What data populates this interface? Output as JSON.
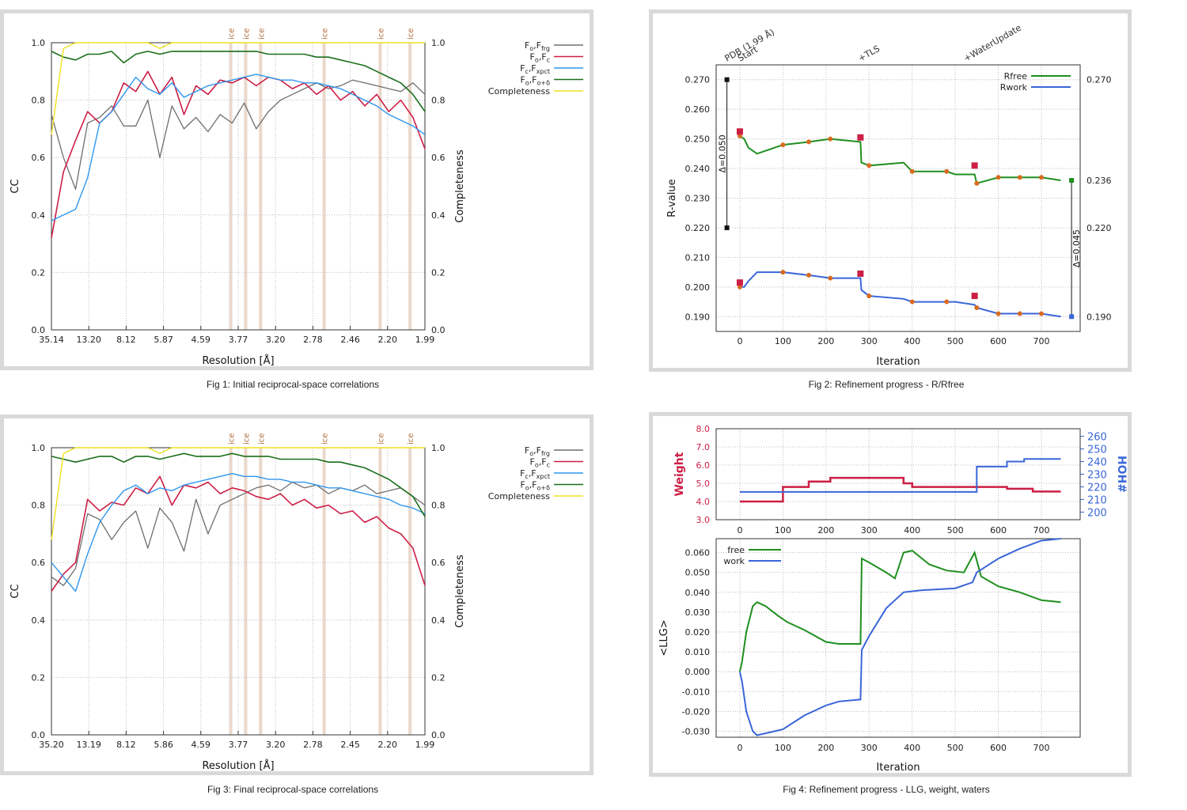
{
  "figures": [
    {
      "id": "fig1",
      "caption": "Fig 1:  Initial reciprocal-space correlations"
    },
    {
      "id": "fig2",
      "caption": "Fig 2:  Refinement progress - R/Rfree"
    },
    {
      "id": "fig3",
      "caption": "Fig 3:  Final reciprocal-space correlations"
    },
    {
      "id": "fig4",
      "caption": "Fig 4:  Refinement progress - LLG, weight, waters"
    }
  ],
  "colors": {
    "grey": "#6e6e6e",
    "red": "#cc1f45",
    "blue": "#2e96ee",
    "green": "#1a6e1a",
    "yellow": "#f0e020",
    "ice": "#d9b8a0",
    "rblue": "#3a66d9",
    "rgreen": "#1f8f1f",
    "orange": "#d86a20"
  },
  "chart_data": [
    {
      "type": "line",
      "title": "",
      "xlabel": "Resolution [Å]",
      "ylabel": "CC",
      "y2label": "Completeness",
      "x_tick_labels": [
        "35.14",
        "13.20",
        "8.12",
        "5.87",
        "4.59",
        "3.77",
        "3.20",
        "2.78",
        "2.46",
        "2.20",
        "1.99"
      ],
      "y_ticks": [
        "0.0",
        "0.2",
        "0.4",
        "0.6",
        "0.8",
        "1.0"
      ],
      "ylim": [
        0,
        1
      ],
      "ice_labels": [
        "ice",
        "ice",
        "ice",
        "ice",
        "ice",
        "ice"
      ],
      "ice_positions": [
        0.48,
        0.52,
        0.56,
        0.73,
        0.88,
        0.96
      ],
      "legend": [
        "Fo,Ffrg",
        "Fo,Fc",
        "Fc,Fxpct",
        "Fo,Fo+δ",
        "Completeness"
      ],
      "series": [
        {
          "name": "Fo,Ffrg",
          "values": [
            0.75,
            0.6,
            0.49,
            0.72,
            0.74,
            0.78,
            0.71,
            0.71,
            0.8,
            0.6,
            0.78,
            0.7,
            0.74,
            0.69,
            0.75,
            0.72,
            0.79,
            0.7,
            0.76,
            0.8,
            0.82,
            0.84,
            0.86,
            0.84,
            0.85,
            0.87,
            0.86,
            0.85,
            0.84,
            0.83,
            0.86,
            0.82
          ]
        },
        {
          "name": "Fo,Fc",
          "values": [
            0.32,
            0.55,
            0.66,
            0.76,
            0.72,
            0.76,
            0.86,
            0.83,
            0.9,
            0.82,
            0.88,
            0.75,
            0.85,
            0.82,
            0.87,
            0.86,
            0.88,
            0.85,
            0.88,
            0.87,
            0.84,
            0.86,
            0.82,
            0.85,
            0.8,
            0.83,
            0.78,
            0.82,
            0.76,
            0.8,
            0.74,
            0.63
          ]
        },
        {
          "name": "Fc,Fxpct",
          "values": [
            0.38,
            0.4,
            0.42,
            0.53,
            0.72,
            0.76,
            0.82,
            0.88,
            0.84,
            0.82,
            0.86,
            0.81,
            0.83,
            0.85,
            0.86,
            0.87,
            0.88,
            0.89,
            0.88,
            0.87,
            0.87,
            0.86,
            0.86,
            0.85,
            0.84,
            0.82,
            0.8,
            0.78,
            0.75,
            0.73,
            0.71,
            0.68
          ]
        },
        {
          "name": "Fo,Fo+δ",
          "values": [
            0.97,
            0.95,
            0.94,
            0.96,
            0.96,
            0.97,
            0.93,
            0.96,
            0.97,
            0.96,
            0.97,
            0.97,
            0.97,
            0.97,
            0.97,
            0.97,
            0.97,
            0.97,
            0.96,
            0.96,
            0.96,
            0.96,
            0.95,
            0.95,
            0.94,
            0.93,
            0.92,
            0.9,
            0.88,
            0.86,
            0.82,
            0.76
          ]
        },
        {
          "name": "Completeness",
          "values": [
            0.68,
            0.98,
            1.0,
            1.0,
            1.0,
            1.0,
            1.0,
            1.0,
            1.0,
            0.98,
            1.0,
            1.0,
            1.0,
            1.0,
            1.0,
            1.0,
            1.0,
            1.0,
            1.0,
            1.0,
            1.0,
            1.0,
            1.0,
            1.0,
            1.0,
            1.0,
            1.0,
            1.0,
            1.0,
            1.0,
            1.0,
            1.0
          ]
        }
      ]
    },
    {
      "type": "line",
      "title": "",
      "xlabel": "Iteration",
      "ylabel": "R-value",
      "x_ticks": [
        0,
        100,
        200,
        300,
        400,
        500,
        600,
        700
      ],
      "xlim": [
        -55,
        790
      ],
      "ylim": [
        0.185,
        0.275
      ],
      "y_ticks": [
        "0.270",
        "0.260",
        "0.250",
        "0.240",
        "0.230",
        "0.220",
        "0.210",
        "0.200",
        "0.190"
      ],
      "right_labels": [
        "0.270",
        "0.236",
        "0.220",
        "0.190"
      ],
      "right_label_values": [
        0.27,
        0.236,
        0.22,
        0.19
      ],
      "top_annotations": [
        {
          "label": "PDB (1.99 Å)",
          "x": -30
        },
        {
          "label": "Start",
          "x": 0
        },
        {
          "label": "+TLS",
          "x": 280
        },
        {
          "label": "+WaterUpdate",
          "x": 525
        }
      ],
      "delta_left": "Δ=0.050",
      "delta_right": "Δ=0.045",
      "pdb_rfree": 0.27,
      "pdb_rwork": 0.22,
      "final_rfree": 0.236,
      "final_rwork": 0.19,
      "legend": [
        "Rfree",
        "Rwork"
      ],
      "series": [
        {
          "name": "Rfree",
          "x": [
            0,
            10,
            20,
            40,
            60,
            80,
            100,
            160,
            210,
            280,
            282,
            300,
            380,
            400,
            480,
            500,
            545,
            550,
            600,
            650,
            700,
            745
          ],
          "values": [
            0.251,
            0.25,
            0.247,
            0.245,
            0.246,
            0.247,
            0.248,
            0.249,
            0.25,
            0.249,
            0.242,
            0.241,
            0.242,
            0.239,
            0.239,
            0.238,
            0.238,
            0.235,
            0.237,
            0.237,
            0.237,
            0.236
          ]
        },
        {
          "name": "Rwork",
          "x": [
            0,
            10,
            20,
            40,
            60,
            80,
            100,
            160,
            210,
            280,
            282,
            300,
            380,
            400,
            480,
            500,
            545,
            550,
            600,
            650,
            700,
            745
          ],
          "values": [
            0.2,
            0.2,
            0.202,
            0.205,
            0.205,
            0.205,
            0.205,
            0.204,
            0.203,
            0.203,
            0.199,
            0.197,
            0.196,
            0.195,
            0.195,
            0.195,
            0.194,
            0.193,
            0.191,
            0.191,
            0.191,
            0.19
          ]
        }
      ]
    },
    {
      "type": "line",
      "title": "",
      "xlabel": "Resolution [Å]",
      "ylabel": "CC",
      "y2label": "Completeness",
      "x_tick_labels": [
        "35.20",
        "13.19",
        "8.12",
        "5.86",
        "4.59",
        "3.77",
        "3.20",
        "2.78",
        "2.45",
        "2.20",
        "1.99"
      ],
      "y_ticks": [
        "0.0",
        "0.2",
        "0.4",
        "0.6",
        "0.8",
        "1.0"
      ],
      "ylim": [
        0,
        1
      ],
      "ice_labels": [
        "ice",
        "ice",
        "ice",
        "ice",
        "ice",
        "ice"
      ],
      "ice_positions": [
        0.48,
        0.52,
        0.56,
        0.73,
        0.88,
        0.96
      ],
      "legend": [
        "Fo,Ffrg",
        "Fo,Fc",
        "Fc,Fxpct",
        "Fo,Fo+δ",
        "Completeness"
      ],
      "series": [
        {
          "name": "Fo,Ffrg",
          "values": [
            0.55,
            0.52,
            0.58,
            0.77,
            0.75,
            0.68,
            0.74,
            0.78,
            0.65,
            0.79,
            0.74,
            0.64,
            0.82,
            0.7,
            0.8,
            0.82,
            0.84,
            0.86,
            0.87,
            0.85,
            0.88,
            0.86,
            0.87,
            0.84,
            0.86,
            0.85,
            0.87,
            0.84,
            0.85,
            0.86,
            0.83,
            0.8
          ]
        },
        {
          "name": "Fo,Fc",
          "values": [
            0.5,
            0.56,
            0.6,
            0.82,
            0.78,
            0.81,
            0.8,
            0.86,
            0.84,
            0.9,
            0.8,
            0.87,
            0.86,
            0.88,
            0.84,
            0.86,
            0.85,
            0.83,
            0.82,
            0.84,
            0.8,
            0.82,
            0.79,
            0.8,
            0.77,
            0.78,
            0.74,
            0.76,
            0.72,
            0.7,
            0.65,
            0.52
          ]
        },
        {
          "name": "Fc,Fxpct",
          "values": [
            0.6,
            0.55,
            0.5,
            0.63,
            0.74,
            0.8,
            0.85,
            0.87,
            0.84,
            0.86,
            0.85,
            0.87,
            0.88,
            0.89,
            0.9,
            0.91,
            0.9,
            0.9,
            0.89,
            0.89,
            0.88,
            0.88,
            0.87,
            0.86,
            0.86,
            0.85,
            0.84,
            0.83,
            0.82,
            0.8,
            0.79,
            0.77
          ]
        },
        {
          "name": "Fo,Fo+δ",
          "values": [
            0.97,
            0.96,
            0.95,
            0.96,
            0.97,
            0.97,
            0.95,
            0.97,
            0.97,
            0.96,
            0.97,
            0.98,
            0.97,
            0.97,
            0.97,
            0.98,
            0.97,
            0.97,
            0.97,
            0.96,
            0.96,
            0.96,
            0.96,
            0.95,
            0.95,
            0.94,
            0.93,
            0.91,
            0.89,
            0.86,
            0.83,
            0.76
          ]
        },
        {
          "name": "Completeness",
          "values": [
            0.68,
            0.98,
            1.0,
            1.0,
            1.0,
            1.0,
            1.0,
            1.0,
            1.0,
            0.98,
            1.0,
            1.0,
            1.0,
            1.0,
            1.0,
            1.0,
            1.0,
            1.0,
            1.0,
            1.0,
            1.0,
            1.0,
            1.0,
            1.0,
            1.0,
            1.0,
            1.0,
            1.0,
            1.0,
            1.0,
            1.0,
            1.0
          ]
        }
      ]
    },
    {
      "type": "line",
      "title": "",
      "top": {
        "ylabel": "Weight",
        "y2label": "HOH#",
        "x_ticks": [
          0,
          100,
          200,
          300,
          400,
          500,
          600,
          700
        ],
        "xlim": [
          -55,
          790
        ],
        "ylim": [
          3.0,
          8.0
        ],
        "y_ticks": [
          "3.0",
          "4.0",
          "5.0",
          "6.0",
          "7.0",
          "8.0"
        ],
        "y2lim": [
          194,
          266
        ],
        "y2_ticks": [
          "200",
          "210",
          "220",
          "230",
          "240",
          "250",
          "260"
        ],
        "series": [
          {
            "name": "Weight",
            "x": [
              0,
              100,
              100,
              160,
              160,
              210,
              210,
              380,
              380,
              400,
              400,
              620,
              620,
              680,
              680,
              745
            ],
            "values": [
              4.0,
              4.0,
              4.8,
              4.8,
              5.1,
              5.1,
              5.3,
              5.3,
              5.0,
              5.0,
              4.8,
              4.8,
              4.7,
              4.7,
              4.55,
              4.55
            ]
          },
          {
            "name": "HOH#",
            "x": [
              0,
              550,
              550,
              620,
              620,
              660,
              660,
              745
            ],
            "values": [
              216,
              216,
              236,
              236,
              240,
              240,
              242,
              242
            ]
          }
        ]
      },
      "bottom": {
        "xlabel": "Iteration",
        "ylabel": "<LLG>",
        "x_ticks": [
          0,
          100,
          200,
          300,
          400,
          500,
          600,
          700
        ],
        "xlim": [
          -55,
          790
        ],
        "ylim": [
          -0.033,
          0.067
        ],
        "y_ticks": [
          "0.060",
          "0.050",
          "0.040",
          "0.030",
          "0.020",
          "0.010",
          "0.000",
          "-0.010",
          "-0.020",
          "-0.030"
        ],
        "legend": [
          "free",
          "work"
        ],
        "series": [
          {
            "name": "free",
            "x": [
              0,
              5,
              15,
              30,
              40,
              60,
              90,
              110,
              150,
              200,
              230,
              280,
              283,
              300,
              340,
              360,
              380,
              400,
              440,
              480,
              520,
              545,
              560,
              600,
              650,
              700,
              745
            ],
            "values": [
              0.0,
              0.005,
              0.02,
              0.033,
              0.035,
              0.033,
              0.028,
              0.025,
              0.021,
              0.015,
              0.014,
              0.014,
              0.057,
              0.055,
              0.05,
              0.047,
              0.06,
              0.061,
              0.054,
              0.051,
              0.05,
              0.06,
              0.048,
              0.043,
              0.04,
              0.036,
              0.035
            ]
          },
          {
            "name": "work",
            "x": [
              0,
              5,
              15,
              30,
              40,
              60,
              80,
              100,
              150,
              200,
              230,
              280,
              283,
              300,
              340,
              380,
              420,
              500,
              540,
              550,
              600,
              650,
              700,
              745
            ],
            "values": [
              0.0,
              -0.005,
              -0.02,
              -0.03,
              -0.032,
              -0.031,
              -0.03,
              -0.029,
              -0.022,
              -0.017,
              -0.015,
              -0.014,
              0.011,
              0.018,
              0.032,
              0.04,
              0.041,
              0.042,
              0.045,
              0.05,
              0.057,
              0.062,
              0.066,
              0.067
            ]
          }
        ]
      }
    }
  ]
}
